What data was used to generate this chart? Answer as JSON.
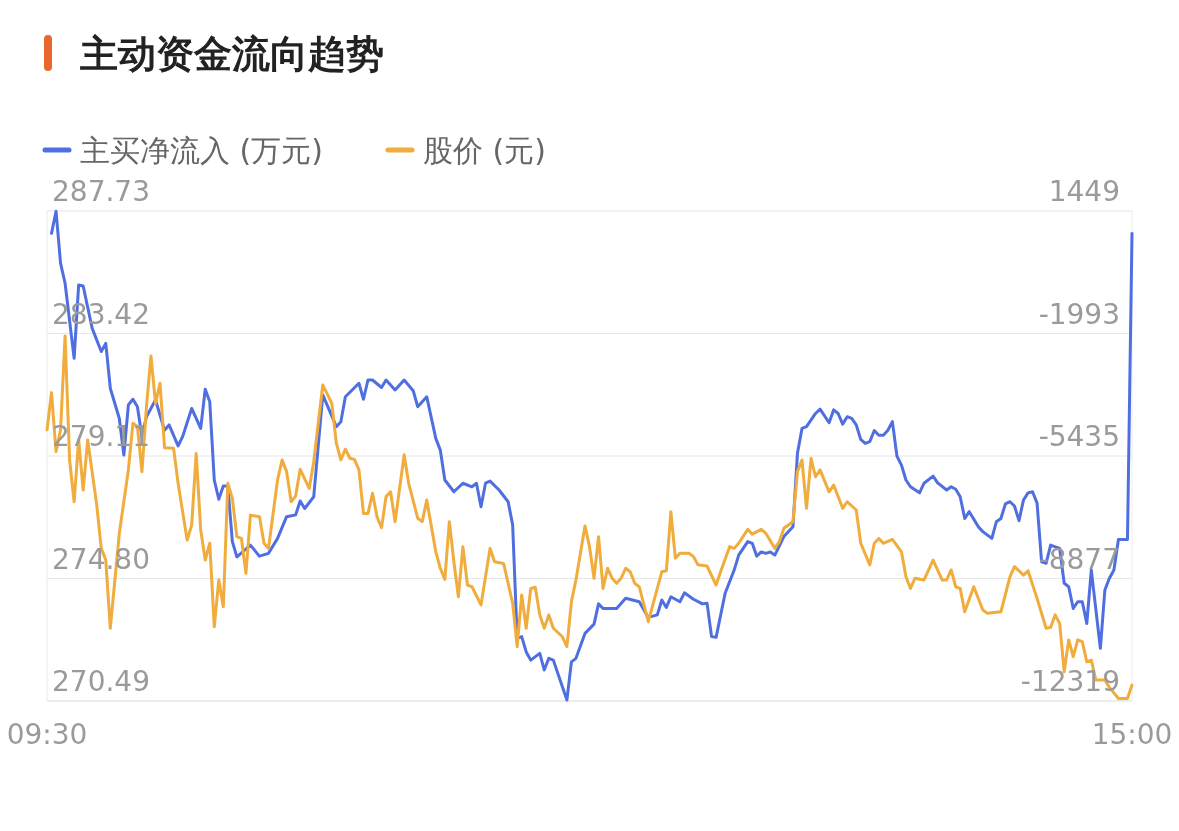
{
  "chart_data": {
    "type": "line",
    "title": "主动资金流向趋势",
    "legend": "top left",
    "grid": "y",
    "categories": [
      "09:30",
      null,
      null,
      null,
      null,
      null,
      null,
      null,
      null,
      null,
      null,
      null,
      null,
      null,
      null,
      null,
      null,
      null,
      null,
      null,
      null,
      null,
      null,
      null,
      null,
      null,
      null,
      null,
      null,
      null,
      null,
      null,
      null,
      null,
      null,
      null,
      null,
      null,
      null,
      null,
      null,
      null,
      null,
      null,
      null,
      null,
      null,
      null,
      null,
      null,
      null,
      null,
      null,
      null,
      null,
      null,
      null,
      null,
      null,
      null,
      null,
      null,
      null,
      null,
      null,
      null,
      null,
      null,
      null,
      null,
      null,
      null,
      null,
      null,
      null,
      null,
      null,
      null,
      null,
      null,
      null,
      null,
      null,
      null,
      null,
      null,
      null,
      null,
      null,
      null,
      null,
      null,
      null,
      null,
      null,
      null,
      null,
      null,
      null,
      null,
      null,
      null,
      null,
      null,
      null,
      null,
      null,
      null,
      null,
      null,
      null,
      null,
      null,
      null,
      null,
      null,
      null,
      null,
      null,
      null,
      null,
      null,
      null,
      null,
      null,
      null,
      null,
      null,
      null,
      null,
      null,
      null,
      null,
      null,
      null,
      null,
      null,
      null,
      null,
      null,
      null,
      null,
      null,
      null,
      null,
      null,
      null,
      null,
      null,
      null,
      null,
      null,
      null,
      null,
      null,
      null,
      null,
      null,
      null,
      null,
      null,
      null,
      null,
      null,
      null,
      null,
      null,
      null,
      null,
      null,
      null,
      null,
      null,
      null,
      null,
      null,
      null,
      null,
      null,
      null,
      null,
      null,
      null,
      null,
      null,
      null,
      null,
      null,
      null,
      null,
      null,
      null,
      null,
      null,
      null,
      null,
      null,
      null,
      null,
      null,
      null,
      null,
      null,
      null,
      null,
      null,
      null,
      null,
      null,
      null,
      null,
      null,
      null,
      null,
      null,
      null,
      null,
      null,
      null,
      null,
      null,
      null,
      null,
      null,
      null,
      null,
      null,
      null,
      null,
      null,
      null,
      null,
      null,
      null,
      null,
      null,
      null,
      null,
      null,
      null,
      "15:00"
    ],
    "ylim": [
      270.49,
      287.73
    ],
    "yticks": [
      287.73,
      283.42,
      279.11,
      {
        "value": 274.8,
        "label": "274.80"
      },
      270.49
    ],
    "y2lim": [
      -12319,
      1449
    ],
    "y2ticks": [
      1449,
      -1993,
      -5435,
      -8877,
      -12319
    ],
    "series": [
      {
        "name": "主买净流入 (万元)",
        "color": "#4f6fe0",
        "axis": "y2",
        "values": [
          null,
          820,
          1440,
          -20,
          -580,
          null,
          -2690,
          -630,
          -660,
          null,
          -1850,
          null,
          -2500,
          -2270,
          -3530,
          null,
          -4380,
          -5410,
          -4000,
          -3840,
          -4050,
          -4890,
          -4330,
          null,
          -3860,
          null,
          -4710,
          -4560,
          null,
          -5150,
          -4890,
          null,
          -4100,
          null,
          -4660,
          -3560,
          -3910,
          -6110,
          -6650,
          -6280,
          -6280,
          -7840,
          -8270,
          null,
          null,
          -7940,
          null,
          -8250,
          null,
          -8170,
          null,
          -7750,
          null,
          -7140,
          null,
          -7090,
          -6700,
          -6910,
          null,
          -6580,
          null,
          -3720,
          null,
          null,
          -4610,
          -4470,
          -3770,
          null,
          null,
          -3390,
          -3840,
          -3300,
          -3300,
          null,
          -3510,
          -3300,
          null,
          -3580,
          null,
          -3300,
          null,
          -3600,
          -4050,
          null,
          -3770,
          null,
          -4940,
          -5270,
          -6110,
          null,
          -6440,
          null,
          -6200,
          null,
          -6300,
          -6200,
          -6860,
          -6200,
          -6140,
          null,
          -6390,
          null,
          -6720,
          -7370,
          -10560,
          -10510,
          -10940,
          -11170,
          null,
          -10980,
          -11450,
          -11120,
          -11170,
          null,
          null,
          -12290,
          -11220,
          -11120,
          null,
          -10420,
          null,
          -10160,
          -9590,
          -9720,
          null,
          null,
          -9720,
          null,
          -9430,
          null,
          null,
          -9530,
          null,
          -9970,
          null,
          -9900,
          -9480,
          -9690,
          -9390,
          null,
          -9530,
          -9280,
          null,
          -9460,
          null,
          -9590,
          -9570,
          -10510,
          -10530,
          null,
          -9290,
          null,
          -8640,
          -8220,
          null,
          -7840,
          -7890,
          -8250,
          -8130,
          -8170,
          -8130,
          -8220,
          null,
          -7700,
          null,
          -7420,
          -5360,
          -4660,
          -4610,
          null,
          -4240,
          -4120,
          null,
          -4500,
          -4140,
          -4240,
          -4540,
          -4330,
          -4380,
          -4560,
          -4970,
          -5080,
          -5030,
          -4720,
          -4850,
          -4850,
          -4710,
          -4470,
          -5440,
          -5690,
          -6110,
          -6300,
          null,
          -6470,
          -6200,
          null,
          -6000,
          -6190,
          null,
          -6390,
          -6300,
          -6370,
          -6580,
          -7190,
          -7000,
          null,
          -7420,
          -7560,
          null,
          -7750,
          -7280,
          -7190,
          -6780,
          -6720,
          -6840,
          -7250,
          -6670,
          -6470,
          -6440,
          -6760,
          -8410,
          -8450,
          -7940,
          null,
          -8030,
          -9010,
          -9110,
          -9720,
          -9530,
          -9530,
          -10140,
          -8640,
          null,
          -10840,
          -9200,
          -8870,
          -8640,
          -7780,
          null,
          -7780,
          820
        ]
      },
      {
        "name": "股价 (元)",
        "color": "#f0ac3c",
        "values": [
          280.03,
          281.34,
          279.26,
          280.03,
          283.33,
          278.97,
          277.5,
          279.67,
          277.91,
          279.67,
          null,
          277.39,
          275.86,
          275.45,
          273.05,
          null,
          276.39,
          null,
          278.62,
          280.26,
          280.14,
          278.56,
          280.84,
          282.63,
          280.96,
          281.67,
          279.4,
          null,
          279.38,
          278.15,
          null,
          276.15,
          276.68,
          279.2,
          276.51,
          275.45,
          276.04,
          273.1,
          274.75,
          273.81,
          278.15,
          277.62,
          276.27,
          276.21,
          274.98,
          277.03,
          null,
          276.97,
          276.04,
          275.86,
          null,
          278.27,
          278.97,
          278.56,
          277.5,
          277.7,
          278.64,
          null,
          277.97,
          278.91,
          null,
          281.61,
          null,
          280.96,
          279.56,
          278.97,
          279.35,
          279.03,
          278.99,
          278.62,
          277.09,
          277.09,
          277.8,
          276.97,
          276.59,
          277.68,
          277.85,
          276.8,
          null,
          279.15,
          278.15,
          null,
          276.92,
          276.8,
          277.56,
          null,
          275.74,
          275.16,
          274.77,
          276.8,
          275.39,
          274.16,
          275.92,
          274.57,
          274.51,
          null,
          273.87,
          null,
          275.86,
          275.39,
          null,
          275.33,
          null,
          273.93,
          272.4,
          274.22,
          273.05,
          274.45,
          274.49,
          273.52,
          273.05,
          273.52,
          273.05,
          null,
          272.75,
          272.4,
          273.98,
          274.75,
          null,
          276.65,
          275.92,
          274.81,
          276.27,
          274.45,
          275.16,
          274.81,
          274.63,
          274.81,
          275.16,
          275.04,
          274.63,
          274.51,
          null,
          273.28,
          null,
          274.45,
          275.04,
          275.07,
          277.15,
          275.51,
          275.69,
          null,
          275.69,
          275.57,
          275.28,
          null,
          275.24,
          null,
          274.57,
          275.04,
          null,
          275.92,
          275.86,
          276.04,
          null,
          276.53,
          276.36,
          null,
          276.53,
          276.39,
          null,
          275.86,
          276.1,
          276.57,
          null,
          276.8,
          278.56,
          278.97,
          277.27,
          279.03,
          278.38,
          278.62,
          null,
          277.85,
          278.09,
          null,
          277.27,
          277.5,
          null,
          277.21,
          276.04,
          null,
          275.28,
          276.04,
          276.21,
          276.04,
          null,
          276.18,
          null,
          275.74,
          274.86,
          274.45,
          274.81,
          null,
          274.75,
          null,
          275.45,
          null,
          274.75,
          274.75,
          275.1,
          274.51,
          274.45,
          273.63,
          null,
          274.51,
          null,
          273.69,
          273.58,
          null,
          null,
          273.63,
          null,
          274.86,
          275.22,
          null,
          274.92,
          275.07,
          null,
          274.1,
          null,
          273.05,
          273.08,
          273.52,
          273.22,
          271.52,
          272.64,
          272.05,
          272.64,
          272.58,
          271.87,
          271.93,
          271.23,
          null,
          271.23,
          270.97,
          null,
          270.58,
          null,
          270.58,
          271.05
        ]
      }
    ]
  }
}
